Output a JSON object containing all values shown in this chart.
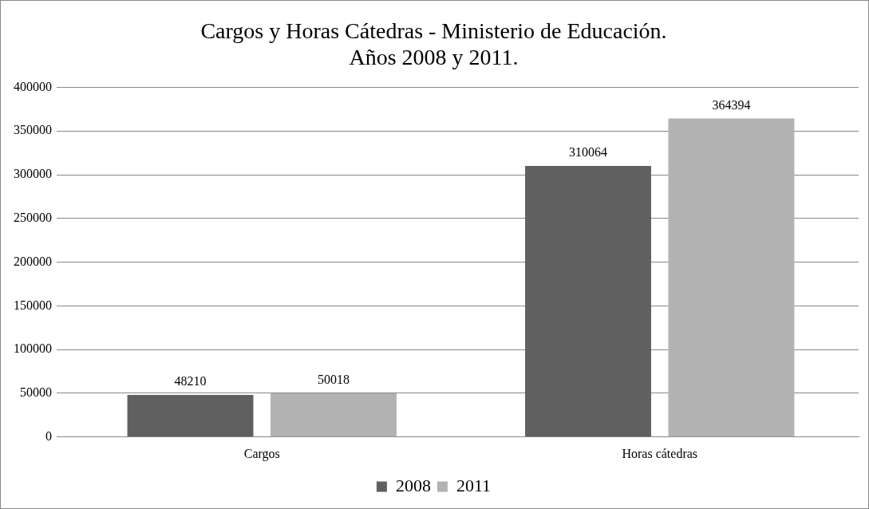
{
  "chart_data": {
    "type": "bar",
    "title": "Cargos y Horas Cátedras - Ministerio de Educación.\nAños 2008 y 2011.",
    "categories": [
      "Cargos",
      "Horas cátedras"
    ],
    "series": [
      {
        "name": "2008",
        "color": "#606060",
        "values": [
          48210,
          310064
        ]
      },
      {
        "name": "2011",
        "color": "#b2b2b2",
        "values": [
          50018,
          364394
        ]
      }
    ],
    "ylim": [
      0,
      400000
    ],
    "yticks": [
      0,
      50000,
      100000,
      150000,
      200000,
      250000,
      300000,
      350000,
      400000
    ],
    "grid": "y",
    "legend": "bottom",
    "data_labels": true
  }
}
